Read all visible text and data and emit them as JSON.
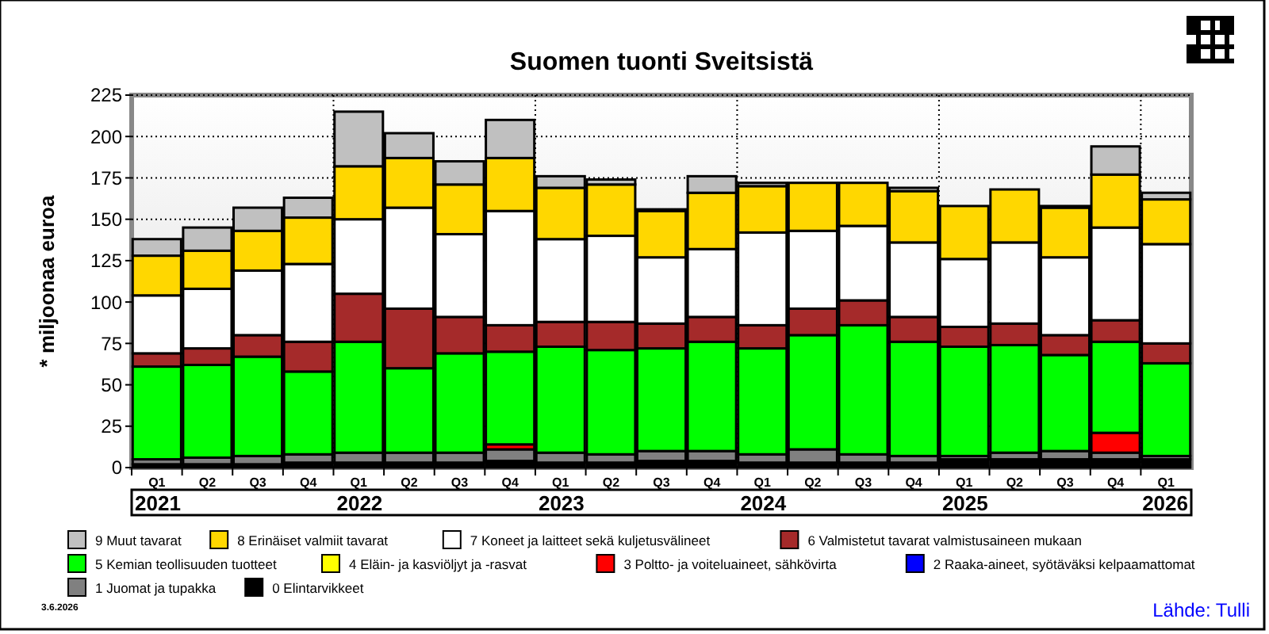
{
  "chart_data": {
    "type": "bar",
    "title": "Suomen tuonti Sveitsistä",
    "ylabel": "* miljoonaa euroa",
    "stacked": true,
    "grid": true,
    "legend": "bottom",
    "categories": [
      "Q1",
      "Q2",
      "Q3",
      "Q4",
      "Q1",
      "Q2",
      "Q3",
      "Q4",
      "Q1",
      "Q2",
      "Q3",
      "Q4",
      "Q1",
      "Q2",
      "Q3",
      "Q4",
      "Q1",
      "Q2",
      "Q3",
      "Q4",
      "Q1"
    ],
    "ylim": [
      0,
      225
    ],
    "yticks": [
      0,
      25,
      50,
      75,
      100,
      125,
      150,
      175,
      200,
      225
    ],
    "series": [
      {
        "name": "0 Elintarvikkeet",
        "color": "#000000",
        "values": [
          2,
          2,
          2,
          3,
          3,
          3,
          3,
          4,
          3,
          3,
          4,
          4,
          3,
          3,
          3,
          3,
          5,
          5,
          5,
          5,
          5
        ]
      },
      {
        "name": "1 Juomat ja tupakka",
        "color": "#808080",
        "values": [
          3,
          4,
          5,
          5,
          6,
          6,
          6,
          7,
          6,
          5,
          6,
          6,
          5,
          8,
          5,
          4,
          2,
          4,
          5,
          4,
          2
        ]
      },
      {
        "name": "2 Raaka-aineet, syötäväksi kelpaamattomat",
        "color": "#0000ff",
        "values": [
          0,
          0,
          0,
          0,
          0,
          0,
          0,
          0,
          0,
          0,
          0,
          0,
          0,
          0,
          0,
          0,
          0,
          0,
          0,
          0,
          0
        ]
      },
      {
        "name": "3 Poltto- ja voiteluaineet, sähkövirta",
        "color": "#ff0000",
        "values": [
          0,
          0,
          0,
          0,
          0,
          0,
          0,
          3,
          0,
          0,
          0,
          0,
          0,
          0,
          0,
          0,
          0,
          0,
          0,
          12,
          0
        ]
      },
      {
        "name": "4 Eläin- ja kasviöljyt ja -rasvat",
        "color": "#ffff00",
        "values": [
          0,
          0,
          0,
          0,
          0,
          0,
          0,
          0,
          0,
          0,
          0,
          0,
          0,
          0,
          0,
          0,
          0,
          0,
          0,
          0,
          0
        ]
      },
      {
        "name": "5 Kemian teollisuuden tuotteet",
        "color": "#00ff00",
        "values": [
          56,
          56,
          60,
          50,
          67,
          51,
          60,
          56,
          64,
          63,
          62,
          66,
          64,
          69,
          78,
          69,
          66,
          65,
          58,
          55,
          56
        ]
      },
      {
        "name": "6 Valmistetut tavarat valmistusaineen mukaan",
        "color": "#a52a2a",
        "values": [
          8,
          10,
          13,
          18,
          29,
          36,
          22,
          16,
          15,
          17,
          15,
          15,
          14,
          16,
          15,
          15,
          12,
          13,
          12,
          13,
          12
        ]
      },
      {
        "name": "7 Koneet ja laitteet sekä kuljetusvälineet",
        "color": "#ffffff",
        "values": [
          35,
          36,
          39,
          47,
          45,
          61,
          50,
          69,
          50,
          52,
          40,
          41,
          56,
          47,
          45,
          45,
          41,
          49,
          47,
          56,
          60
        ]
      },
      {
        "name": "8 Erinäiset valmiit tavarat",
        "color": "#ffd700",
        "values": [
          24,
          23,
          24,
          28,
          32,
          30,
          30,
          32,
          31,
          31,
          28,
          34,
          28,
          29,
          26,
          31,
          32,
          32,
          30,
          32,
          27
        ]
      },
      {
        "name": "9 Muut tavarat",
        "color": "#c0c0c0",
        "values": [
          10,
          14,
          14,
          12,
          33,
          15,
          14,
          23,
          7,
          3,
          1,
          10,
          2,
          0,
          0,
          2,
          0,
          0,
          1,
          17,
          4
        ]
      }
    ],
    "annotations": [
      "2021",
      "2022",
      "2023",
      "2024",
      "2025",
      "2026",
      "3.6.2026",
      "Lähde: Tulli"
    ]
  }
}
